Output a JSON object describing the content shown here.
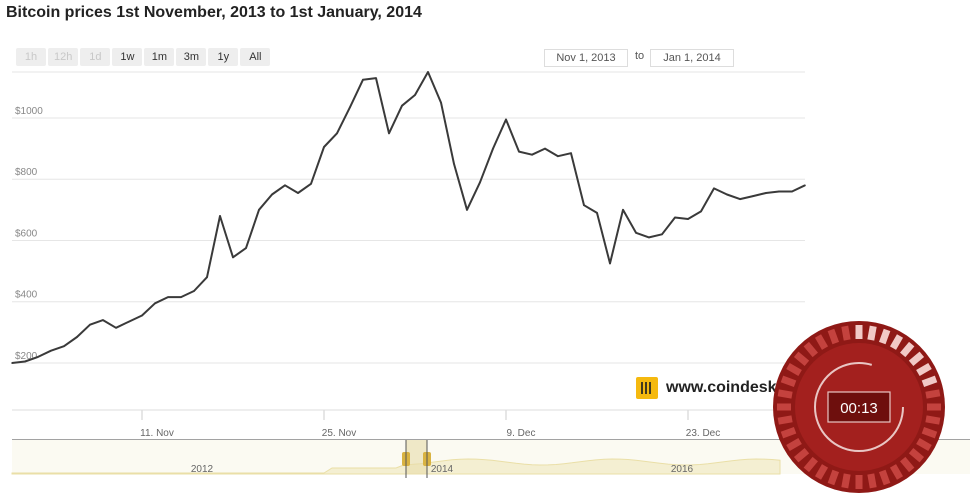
{
  "title": "Bitcoin prices 1st November, 2013 to 1st January, 2014",
  "range_buttons": [
    {
      "label": "1h",
      "enabled": false
    },
    {
      "label": "12h",
      "enabled": false
    },
    {
      "label": "1d",
      "enabled": false
    },
    {
      "label": "1w",
      "enabled": true
    },
    {
      "label": "1m",
      "enabled": true
    },
    {
      "label": "3m",
      "enabled": true
    },
    {
      "label": "1y",
      "enabled": true
    },
    {
      "label": "All",
      "enabled": true
    }
  ],
  "date_range": {
    "from": "Nov 1, 2013",
    "to_label": "to",
    "to": "Jan 1, 2014"
  },
  "logo_text": "www.coindesk",
  "timer_text": "00:13",
  "colors": {
    "line": "#3a3a3a",
    "grid": "#e6e6e6",
    "navigator_fill": "#f4efd2",
    "navigator_handle": "#d9b341",
    "timer": "#a3201e"
  },
  "chart_data": {
    "type": "line",
    "title": "Bitcoin prices 1st November, 2013 to 1st January, 2014",
    "x_ticks": [
      "11. Nov",
      "25. Nov",
      "9. Dec",
      "23. Dec"
    ],
    "y_ticks": [
      "$200",
      "$400",
      "$600",
      "$800",
      "$1000"
    ],
    "ylim": [
      200,
      1150
    ],
    "x": [
      "2013-11-01",
      "2013-11-02",
      "2013-11-03",
      "2013-11-04",
      "2013-11-05",
      "2013-11-06",
      "2013-11-07",
      "2013-11-08",
      "2013-11-09",
      "2013-11-10",
      "2013-11-11",
      "2013-11-12",
      "2013-11-13",
      "2013-11-14",
      "2013-11-15",
      "2013-11-16",
      "2013-11-17",
      "2013-11-18",
      "2013-11-19",
      "2013-11-20",
      "2013-11-21",
      "2013-11-22",
      "2013-11-23",
      "2013-11-24",
      "2013-11-25",
      "2013-11-26",
      "2013-11-27",
      "2013-11-28",
      "2013-11-29",
      "2013-11-30",
      "2013-12-01",
      "2013-12-02",
      "2013-12-03",
      "2013-12-04",
      "2013-12-05",
      "2013-12-06",
      "2013-12-07",
      "2013-12-08",
      "2013-12-09",
      "2013-12-10",
      "2013-12-11",
      "2013-12-12",
      "2013-12-13",
      "2013-12-14",
      "2013-12-15",
      "2013-12-16",
      "2013-12-17",
      "2013-12-18",
      "2013-12-19",
      "2013-12-20",
      "2013-12-21",
      "2013-12-22",
      "2013-12-23",
      "2013-12-24",
      "2013-12-25",
      "2013-12-26",
      "2013-12-27",
      "2013-12-28",
      "2013-12-29",
      "2013-12-30",
      "2013-12-31",
      "2014-01-01"
    ],
    "values": [
      200,
      205,
      220,
      240,
      255,
      285,
      325,
      340,
      315,
      335,
      355,
      395,
      415,
      415,
      435,
      480,
      680,
      545,
      575,
      700,
      750,
      780,
      755,
      785,
      905,
      950,
      1035,
      1125,
      1130,
      950,
      1040,
      1075,
      1150,
      1050,
      850,
      700,
      790,
      900,
      995,
      890,
      880,
      900,
      875,
      885,
      715,
      690,
      525,
      700,
      625,
      610,
      620,
      675,
      670,
      695,
      770,
      750,
      735,
      745,
      755,
      760,
      760,
      780
    ]
  },
  "navigator": {
    "labels": [
      "2012",
      "2014",
      "2016"
    ]
  }
}
